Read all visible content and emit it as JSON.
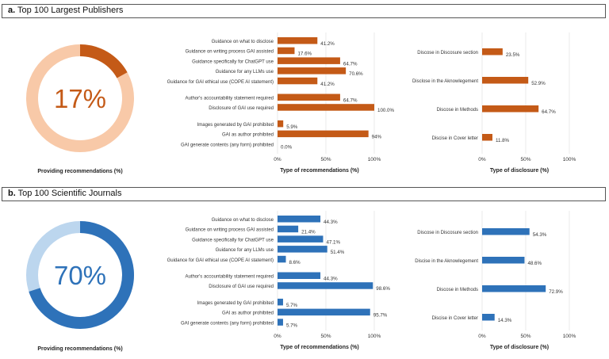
{
  "panels": [
    {
      "id": "a",
      "tag": "a.",
      "title": "Top 100 Largest Publishers",
      "color": "#c45a17",
      "light_color": "#f8c9a8",
      "donut": {
        "percent_label": "17%",
        "value": 17,
        "caption": "Providing recommendations (%)"
      },
      "recommendations": {
        "xlabel": "Type of recommendations (%)",
        "ticks": [
          "0%",
          "50%",
          "100%"
        ],
        "xlim": [
          0,
          100
        ],
        "groups": [
          [
            {
              "label": "Guidance on what to disclose",
              "value": 41.2,
              "value_label": "41.2%"
            },
            {
              "label": "Guidance on writing process GAI assisted",
              "value": 17.6,
              "value_label": "17.6%"
            },
            {
              "label": "Guidance specifically for ChatGPT use",
              "value": 64.7,
              "value_label": "64.7%"
            },
            {
              "label": "Guidance for any LLMs use",
              "value": 70.6,
              "value_label": "70.6%"
            },
            {
              "label": "Guidance for GAI ethical use (COPE AI statement)",
              "value": 41.2,
              "value_label": "41.2%"
            }
          ],
          [
            {
              "label": "Author's accountability statement required",
              "value": 64.7,
              "value_label": "64.7%"
            },
            {
              "label": "Disclosure of GAI use required",
              "value": 100.0,
              "value_label": "100.0%"
            }
          ],
          [
            {
              "label": "Images generated by GAI prohibited",
              "value": 5.9,
              "value_label": "5.9%"
            },
            {
              "label": "GAI as author prohibited",
              "value": 94,
              "value_label": "94%"
            },
            {
              "label": "GAI generate contents (any form) prohibited",
              "value": 0.0,
              "value_label": "0.0%"
            }
          ]
        ]
      },
      "disclosure": {
        "xlabel": "Type of disclosure (%)",
        "ticks": [
          "0%",
          "50%",
          "100%"
        ],
        "xlim": [
          0,
          100
        ],
        "items": [
          {
            "label": "Discose in Discosure section",
            "value": 23.5,
            "value_label": "23.5%"
          },
          {
            "label": "Disclose in the Aknowlegement",
            "value": 52.9,
            "value_label": "52.9%"
          },
          {
            "label": "Discose in Methods",
            "value": 64.7,
            "value_label": "64.7%"
          },
          {
            "label": "Discise in Cover letter",
            "value": 11.8,
            "value_label": "11.8%"
          }
        ]
      }
    },
    {
      "id": "b",
      "tag": "b.",
      "title": "Top 100 Scientific Journals",
      "color": "#2e72b9",
      "light_color": "#bcd6ee",
      "donut": {
        "percent_label": "70%",
        "value": 70,
        "caption": "Providing recommendations (%)"
      },
      "recommendations": {
        "xlabel": "Type of recommendations (%)",
        "ticks": [
          "0%",
          "50%",
          "100%"
        ],
        "xlim": [
          0,
          100
        ],
        "groups": [
          [
            {
              "label": "Guidance on what to disclose",
              "value": 44.3,
              "value_label": "44.3%"
            },
            {
              "label": "Guidance on writing process GAI assisted",
              "value": 21.4,
              "value_label": "21.4%"
            },
            {
              "label": "Guidance specifically for ChatGPT use",
              "value": 47.1,
              "value_label": "47.1%"
            },
            {
              "label": "Guidance for any LLMs use",
              "value": 51.4,
              "value_label": "51.4%"
            },
            {
              "label": "Guidance for GAI ethical use (COPE AI statement)",
              "value": 8.6,
              "value_label": "8.6%"
            }
          ],
          [
            {
              "label": "Author's accountability statement required",
              "value": 44.3,
              "value_label": "44.3%"
            },
            {
              "label": "Disclosure of GAI use required",
              "value": 98.6,
              "value_label": "98.6%"
            }
          ],
          [
            {
              "label": "Images generated by GAI prohibited",
              "value": 5.7,
              "value_label": "5.7%"
            },
            {
              "label": "GAI as author prohibited",
              "value": 95.7,
              "value_label": "95.7%"
            },
            {
              "label": "GAI generate contents (any form) prohibited",
              "value": 5.7,
              "value_label": "5.7%"
            }
          ]
        ]
      },
      "disclosure": {
        "xlabel": "Type of disclosure (%)",
        "ticks": [
          "0%",
          "50%",
          "100%"
        ],
        "xlim": [
          0,
          100
        ],
        "items": [
          {
            "label": "Discose in Discosure section",
            "value": 54.3,
            "value_label": "54.3%"
          },
          {
            "label": "Discise in the Aknowlegement",
            "value": 48.6,
            "value_label": "48.6%"
          },
          {
            "label": "Discose in Methods",
            "value": 72.9,
            "value_label": "72.9%"
          },
          {
            "label": "Discise in Cover letter",
            "value": 14.3,
            "value_label": "14.3%"
          }
        ]
      }
    }
  ],
  "chart_data": [
    {
      "type": "pie",
      "title": "Top 100 Largest Publishers",
      "xlabel": "Providing recommendations (%)",
      "values": [
        17,
        83
      ],
      "center_label": "17%"
    },
    {
      "type": "bar",
      "orientation": "horizontal",
      "xlabel": "Type of recommendations (%)",
      "xlim": [
        0,
        100
      ],
      "categories": [
        "Guidance on what to disclose",
        "Guidance on writing process GAI assisted",
        "Guidance specifically for ChatGPT use",
        "Guidance for any LLMs use",
        "Guidance for GAI ethical use (COPE AI statement)",
        "Author's accountability statement required",
        "Disclosure of GAI use required",
        "Images generated by GAI prohibited",
        "GAI as author prohibited",
        "GAI generate contents (any form) prohibited"
      ],
      "values": [
        41.2,
        17.6,
        64.7,
        70.6,
        41.2,
        64.7,
        100.0,
        5.9,
        94,
        0.0
      ]
    },
    {
      "type": "bar",
      "orientation": "horizontal",
      "xlabel": "Type of disclosure (%)",
      "xlim": [
        0,
        100
      ],
      "categories": [
        "Discose in Discosure section",
        "Disclose in the Aknowlegement",
        "Discose in Methods",
        "Discise in Cover letter"
      ],
      "values": [
        23.5,
        52.9,
        64.7,
        11.8
      ]
    },
    {
      "type": "pie",
      "title": "Top 100 Scientific Journals",
      "xlabel": "Providing recommendations (%)",
      "values": [
        70,
        30
      ],
      "center_label": "70%"
    },
    {
      "type": "bar",
      "orientation": "horizontal",
      "xlabel": "Type of recommendations (%)",
      "xlim": [
        0,
        100
      ],
      "categories": [
        "Guidance on what to disclose",
        "Guidance on writing process GAI assisted",
        "Guidance specifically for ChatGPT use",
        "Guidance for any LLMs use",
        "Guidance for GAI ethical use (COPE AI statement)",
        "Author's accountability statement required",
        "Disclosure of GAI use required",
        "Images generated by GAI prohibited",
        "GAI as author prohibited",
        "GAI generate contents (any form) prohibited"
      ],
      "values": [
        44.3,
        21.4,
        47.1,
        51.4,
        8.6,
        44.3,
        98.6,
        5.7,
        95.7,
        5.7
      ]
    },
    {
      "type": "bar",
      "orientation": "horizontal",
      "xlabel": "Type of disclosure (%)",
      "xlim": [
        0,
        100
      ],
      "categories": [
        "Discose in Discosure section",
        "Discise in the Aknowlegement",
        "Discose in Methods",
        "Discise in Cover letter"
      ],
      "values": [
        54.3,
        48.6,
        72.9,
        14.3
      ]
    }
  ]
}
